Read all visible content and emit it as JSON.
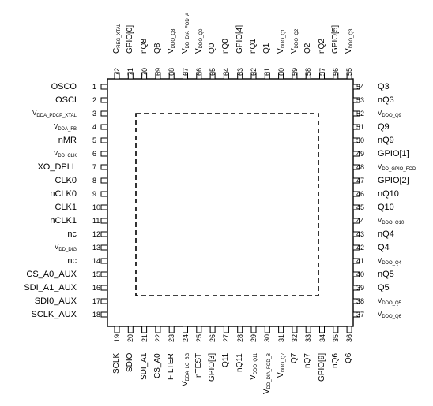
{
  "left_pins": [
    {
      "num": "1",
      "label": "OSCO"
    },
    {
      "num": "2",
      "label": "OSCI"
    },
    {
      "num": "3",
      "label": "V",
      "sub": "DDA_PDCP_XTAL"
    },
    {
      "num": "4",
      "label": "V",
      "sub": "DDA_FB"
    },
    {
      "num": "5",
      "label": "nMR"
    },
    {
      "num": "6",
      "label": "V",
      "sub": "DD_CLK"
    },
    {
      "num": "7",
      "label": "XO_DPLL"
    },
    {
      "num": "8",
      "label": "CLK0"
    },
    {
      "num": "9",
      "label": "nCLK0"
    },
    {
      "num": "10",
      "label": "CLK1"
    },
    {
      "num": "11",
      "label": "nCLK1"
    },
    {
      "num": "12",
      "label": "nc"
    },
    {
      "num": "13",
      "label": "V",
      "sub": "DD_DIG"
    },
    {
      "num": "14",
      "label": "nc"
    },
    {
      "num": "15",
      "label": "CS_A0_AUX"
    },
    {
      "num": "16",
      "label": "SDI_A1_AUX"
    },
    {
      "num": "17",
      "label": "SDI0_AUX"
    },
    {
      "num": "18",
      "label": "SCLK_AUX"
    }
  ],
  "right_pins": [
    {
      "num": "54",
      "label": "Q3"
    },
    {
      "num": "53",
      "label": "nQ3"
    },
    {
      "num": "52",
      "label": "V",
      "sub": "DDO_Q9"
    },
    {
      "num": "51",
      "label": "Q9"
    },
    {
      "num": "50",
      "label": "nQ9"
    },
    {
      "num": "49",
      "label": "GPIO[1]"
    },
    {
      "num": "48",
      "label": "V",
      "sub": "DD_GPIO_FOD"
    },
    {
      "num": "47",
      "label": "GPIO[2]"
    },
    {
      "num": "46",
      "label": "nQ10"
    },
    {
      "num": "45",
      "label": "Q10"
    },
    {
      "num": "44",
      "label": "V",
      "sub": "DDO_Q10"
    },
    {
      "num": "43",
      "label": "nQ4"
    },
    {
      "num": "42",
      "label": "Q4"
    },
    {
      "num": "41",
      "label": "V",
      "sub": "DDO_Q4"
    },
    {
      "num": "40",
      "label": "nQ5"
    },
    {
      "num": "39",
      "label": "Q5"
    },
    {
      "num": "38",
      "label": "V",
      "sub": "DDO_Q5"
    },
    {
      "num": "37",
      "label": "V",
      "sub": "DDO_Q6"
    }
  ],
  "top_pins": [
    {
      "num": "72",
      "label": "C",
      "sub": "REG_XTAL"
    },
    {
      "num": "71",
      "label": "GPIO[0]"
    },
    {
      "num": "70",
      "label": "nQ8"
    },
    {
      "num": "69",
      "label": "Q8"
    },
    {
      "num": "68",
      "label": "V",
      "sub": "DDO_Q8"
    },
    {
      "num": "67",
      "label": "V",
      "sub": "DD_DIA_FOD_A"
    },
    {
      "num": "66",
      "label": "V",
      "sub": "DDO_Q0"
    },
    {
      "num": "65",
      "label": "Q0"
    },
    {
      "num": "64",
      "label": "nQ0"
    },
    {
      "num": "63",
      "label": "GPIO[4]"
    },
    {
      "num": "62",
      "label": "nQ1"
    },
    {
      "num": "61",
      "label": "Q1"
    },
    {
      "num": "60",
      "label": "V",
      "sub": "DDO_Q1"
    },
    {
      "num": "59",
      "label": "V",
      "sub": "DDO_Q2"
    },
    {
      "num": "58",
      "label": "Q2"
    },
    {
      "num": "57",
      "label": "nQ2"
    },
    {
      "num": "56",
      "label": "GPIO[5]"
    },
    {
      "num": "55",
      "label": "V",
      "sub": "DDO_Q3"
    }
  ],
  "bottom_pins": [
    {
      "num": "19",
      "label": "SCLK"
    },
    {
      "num": "20",
      "label": "SDIO"
    },
    {
      "num": "21",
      "label": "SDI_A1"
    },
    {
      "num": "22",
      "label": "CS_A0"
    },
    {
      "num": "23",
      "label": "FILTER"
    },
    {
      "num": "24",
      "label": "V",
      "sub": "DDA_LC_BG"
    },
    {
      "num": "25",
      "label": "nTEST"
    },
    {
      "num": "26",
      "label": "GPIO[3]"
    },
    {
      "num": "27",
      "label": "Q11"
    },
    {
      "num": "28",
      "label": "nQ11"
    },
    {
      "num": "29",
      "label": "V",
      "sub": "DDO_Q11"
    },
    {
      "num": "30",
      "label": "V",
      "sub": "DD_DIA_FOD_B"
    },
    {
      "num": "31",
      "label": "V",
      "sub": "DDO_Q7"
    },
    {
      "num": "32",
      "label": "Q7"
    },
    {
      "num": "33",
      "label": "nQ7"
    },
    {
      "num": "34",
      "label": "GPIO[9]"
    },
    {
      "num": "35",
      "label": "nQ6"
    },
    {
      "num": "36",
      "label": "Q6"
    }
  ]
}
